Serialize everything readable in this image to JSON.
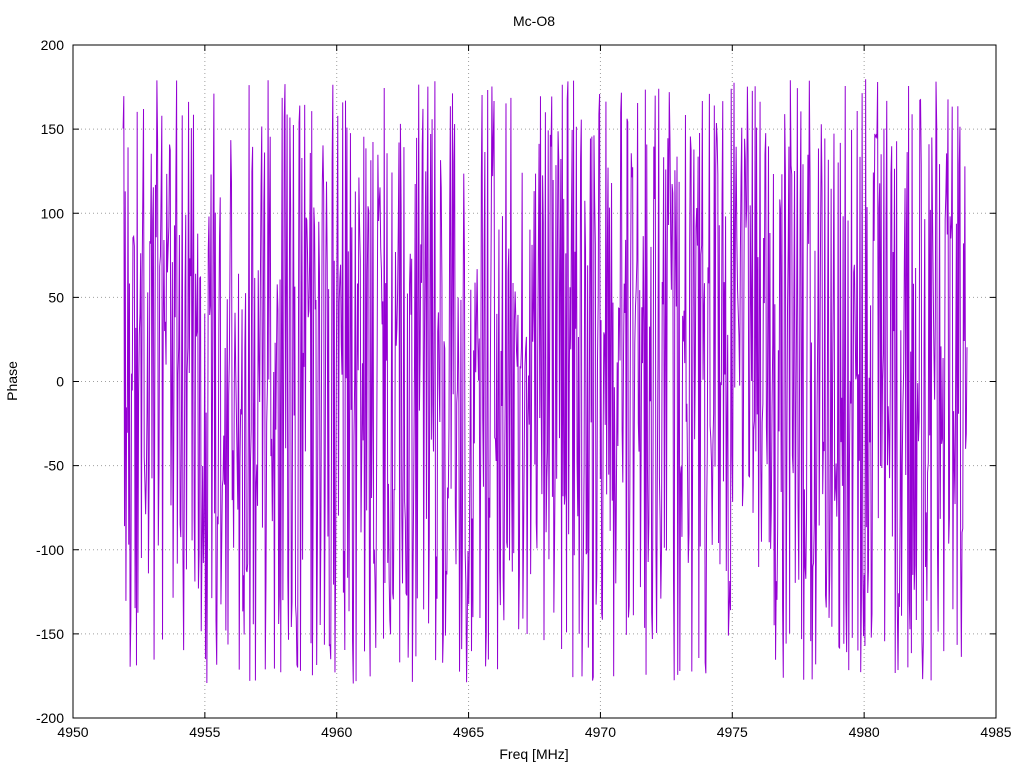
{
  "chart_data": {
    "type": "line",
    "title": "Mc-O8",
    "xlabel": "Freq [MHz]",
    "ylabel": "Phase",
    "xlim": [
      4950,
      4985
    ],
    "ylim": [
      -200,
      200
    ],
    "xticks": [
      4950,
      4955,
      4960,
      4965,
      4970,
      4975,
      4980,
      4985
    ],
    "yticks": [
      -200,
      -150,
      -100,
      -50,
      0,
      50,
      100,
      150,
      200
    ],
    "grid": true,
    "series": [
      {
        "color": "#9400d3",
        "x_start": 4951.9,
        "x_end": 4983.9,
        "point_count": 1200,
        "value_range": [
          -180,
          180
        ],
        "description_note": "densely oscillating wrapped phase values spanning roughly -180 to 180 degrees across the band"
      }
    ]
  }
}
